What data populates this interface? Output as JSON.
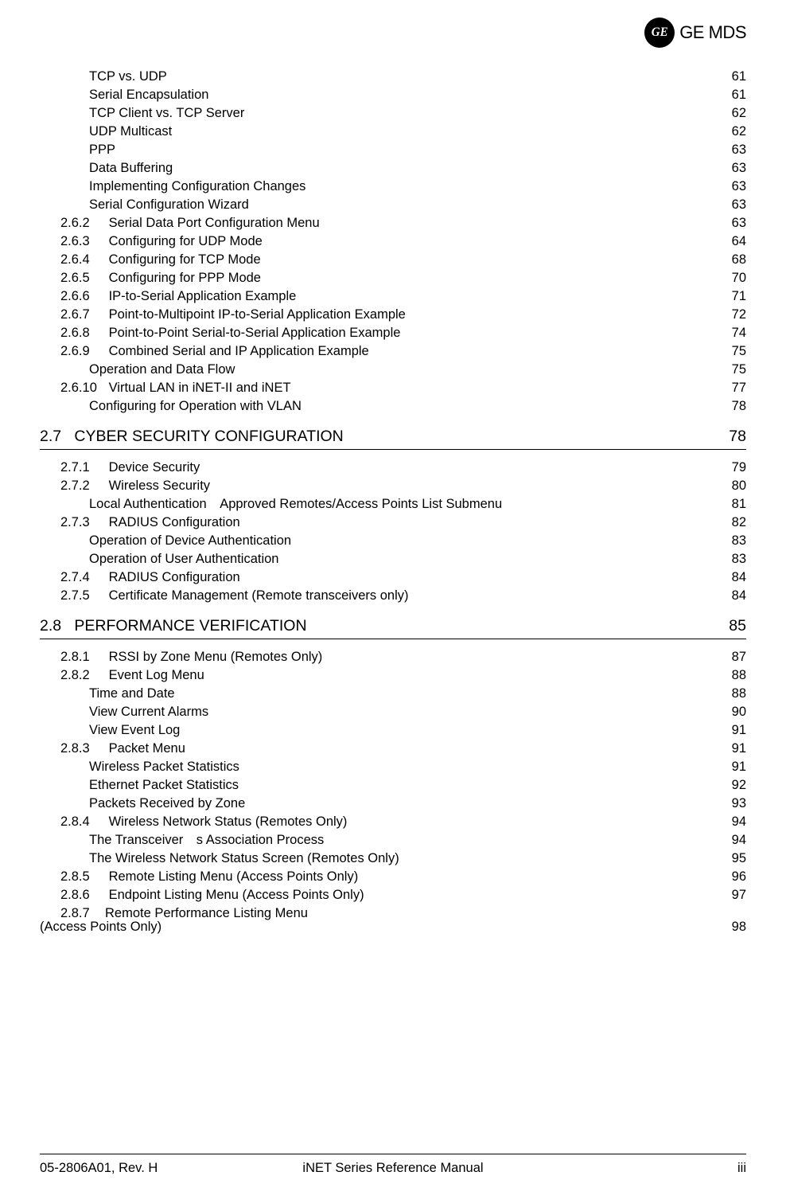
{
  "brand": {
    "ge": "GE",
    "mds": "MDS",
    "monogram_bg": "#000000",
    "monogram_fg": "#ffffff"
  },
  "footer": {
    "left": "05-2806A01, Rev. H",
    "center": "iNET Series Reference Manual",
    "right": "iii"
  },
  "toc": {
    "pre_items": [
      {
        "level": "sub2",
        "title": "TCP vs. UDP",
        "page": "61"
      },
      {
        "level": "sub2",
        "title": "Serial Encapsulation",
        "page": "61"
      },
      {
        "level": "sub2",
        "title": "TCP Client vs. TCP Server",
        "page": "62"
      },
      {
        "level": "sub2",
        "title": "UDP Multicast",
        "page": "62"
      },
      {
        "level": "sub2",
        "title": "PPP",
        "page": "63"
      },
      {
        "level": "sub2",
        "title": "Data Buffering",
        "page": "63"
      },
      {
        "level": "sub2",
        "title": "Implementing Configuration Changes",
        "page": "63"
      },
      {
        "level": "sub2",
        "title": "Serial Configuration Wizard",
        "page": "63"
      },
      {
        "level": "sub",
        "num": "2.6.2",
        "title": "Serial Data Port Configuration Menu",
        "page": "63"
      },
      {
        "level": "sub",
        "num": "2.6.3",
        "title": "Configuring for UDP Mode ",
        "page": "64"
      },
      {
        "level": "sub",
        "num": "2.6.4",
        "title": "Configuring for TCP Mode ",
        "page": "68"
      },
      {
        "level": "sub",
        "num": "2.6.5",
        "title": "Configuring for PPP Mode ",
        "page": "70"
      },
      {
        "level": "sub",
        "num": "2.6.6",
        "title": "IP-to-Serial Application Example ",
        "page": "71"
      },
      {
        "level": "sub",
        "num": "2.6.7",
        "title": "Point-to-Multipoint IP-to-Serial Application Example ",
        "page": "72"
      },
      {
        "level": "sub",
        "num": "2.6.8",
        "title": "Point-to-Point Serial-to-Serial Application Example ",
        "page": "74"
      },
      {
        "level": "sub",
        "num": "2.6.9",
        "title": "Combined Serial and IP Application Example ",
        "page": "75"
      },
      {
        "level": "sub2",
        "title": "Operation and Data Flow",
        "page": "75"
      },
      {
        "level": "sub",
        "num": "2.6.10",
        "title": "Virtual LAN in iNET-II and iNET",
        "page": "77"
      },
      {
        "level": "sub2",
        "title": "Configuring for Operation with VLAN",
        "page": "78"
      }
    ],
    "section27": {
      "num": "2.7",
      "title": "CYBER SECURITY CONFIGURATION",
      "page": "78",
      "items": [
        {
          "level": "sub",
          "num": "2.7.1",
          "title": "Device Security ",
          "page": "79"
        },
        {
          "level": "sub",
          "num": "2.7.2",
          "title": "Wireless Security",
          "page": "80"
        },
        {
          "level": "sub2",
          "title": "Local Authentication Approved Remotes/Access Points List Submenu",
          "page": "81"
        },
        {
          "level": "sub",
          "num": "2.7.3",
          "title": "RADIUS Configuration ",
          "page": "82"
        },
        {
          "level": "sub2",
          "title": "Operation of Device Authentication",
          "page": "83"
        },
        {
          "level": "sub2",
          "title": "Operation of User Authentication",
          "page": "83"
        },
        {
          "level": "sub",
          "num": "2.7.4",
          "title": "RADIUS Configuration ",
          "page": "84"
        },
        {
          "level": "sub",
          "num": "2.7.5",
          "title": "Certificate Management (Remote transceivers only) ",
          "page": "84"
        }
      ]
    },
    "section28": {
      "num": "2.8",
      "title": "PERFORMANCE VERIFICATION",
      "page": "85",
      "items": [
        {
          "level": "sub",
          "num": "2.8.1",
          "title": "RSSI by Zone Menu (Remotes Only)",
          "page": "87"
        },
        {
          "level": "sub",
          "num": "2.8.2",
          "title": "Event Log Menu ",
          "page": "88"
        },
        {
          "level": "sub2",
          "title": "Time and Date",
          "page": "88"
        },
        {
          "level": "sub2",
          "title": "View Current Alarms",
          "page": "90"
        },
        {
          "level": "sub2",
          "title": "View Event Log",
          "page": "91"
        },
        {
          "level": "sub",
          "num": "2.8.3",
          "title": "Packet Menu ",
          "page": "91"
        },
        {
          "level": "sub2",
          "title": "Wireless Packet Statistics",
          "page": "91"
        },
        {
          "level": "sub2",
          "title": "Ethernet Packet Statistics",
          "page": "92"
        },
        {
          "level": "sub2",
          "title": "Packets Received by Zone",
          "page": "93"
        },
        {
          "level": "sub",
          "num": "2.8.4",
          "title": "Wireless Network Status (Remotes Only) ",
          "page": "94"
        },
        {
          "level": "sub2",
          "title": "The Transceiver s Association Process",
          "page": "94"
        },
        {
          "level": "sub2",
          "title": "The Wireless Network Status Screen (Remotes Only)",
          "page": "95"
        },
        {
          "level": "sub",
          "num": "2.8.5",
          "title": "Remote Listing Menu (Access Points Only) ",
          "page": "96"
        },
        {
          "level": "sub",
          "num": "2.8.6",
          "title": "Endpoint Listing Menu (Access Points Only) ",
          "page": "97"
        }
      ],
      "wrapped": {
        "num": "2.8.7",
        "line1": "Remote Performance Listing Menu",
        "line2": "(Access Points Only) ",
        "page": "98"
      }
    }
  }
}
